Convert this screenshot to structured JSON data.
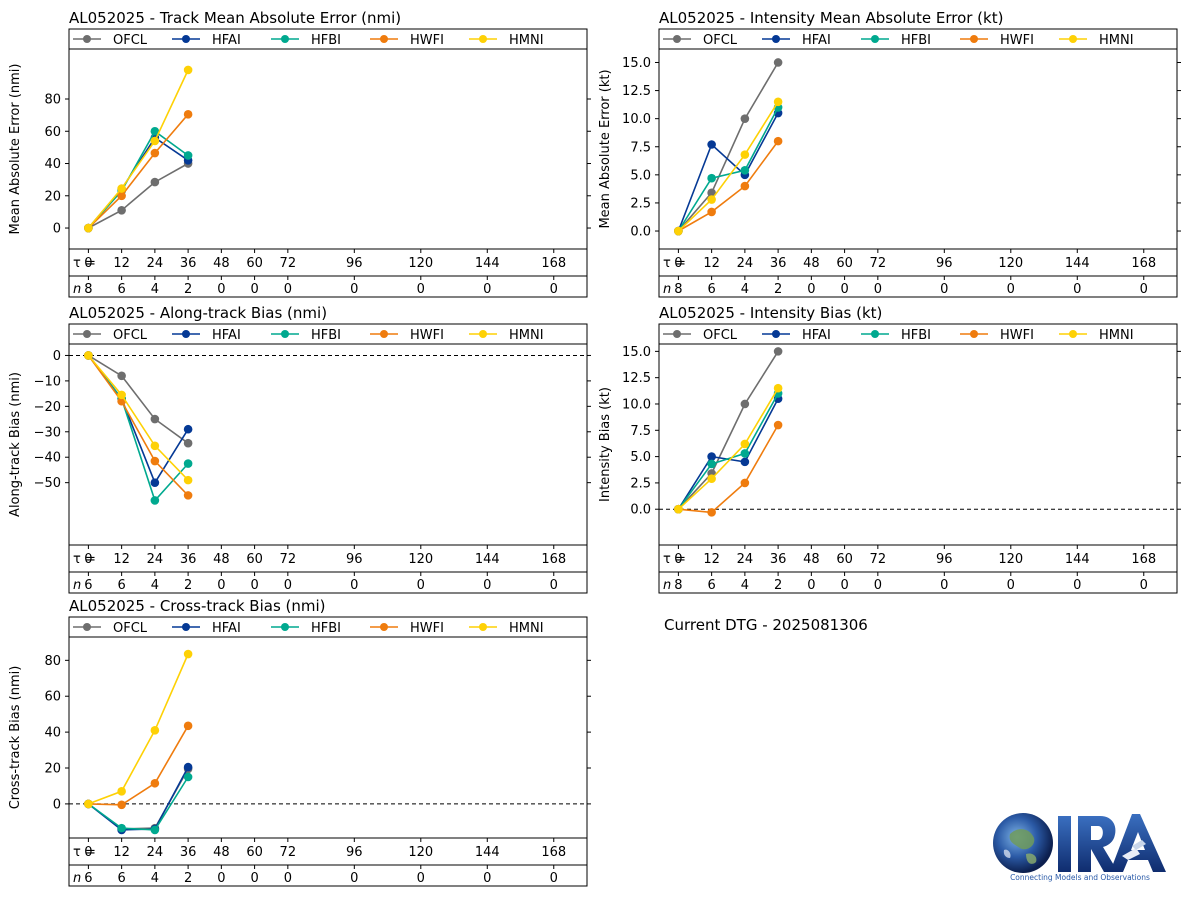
{
  "figure": {
    "current_dtg": "Current DTG - 2025081306",
    "logo_text": "CIRA",
    "logo_tagline": "Connecting Models and Observations"
  },
  "styles": {
    "series_colors": {
      "OFCL": "#6e6e6e",
      "HFAI": "#053995",
      "HFBI": "#00a98f",
      "HWFI": "#ef7c0e",
      "HMNI": "#fed105"
    }
  },
  "tau_label": "τ =",
  "n_label": "n",
  "chart_data": [
    {
      "id": "track",
      "type": "line",
      "title": "AL052025 - Track Mean Absolute Error (nmi)",
      "xlabel": "",
      "ylabel": "Mean Absolute Error (nmi)",
      "xlim": [
        -7,
        180
      ],
      "ylim": [
        -13,
        111
      ],
      "yticks": [
        0,
        20,
        40,
        60,
        80
      ],
      "zero_line": false,
      "legend": "top",
      "tau_ticks": [
        0,
        12,
        24,
        36,
        48,
        60,
        72,
        96,
        120,
        144,
        168
      ],
      "n_values": [
        8,
        6,
        4,
        2,
        0,
        0,
        0,
        0,
        0,
        0,
        0
      ],
      "series": [
        {
          "name": "OFCL",
          "x": [
            0,
            12,
            24,
            36
          ],
          "values": [
            0,
            11,
            28.5,
            40
          ]
        },
        {
          "name": "HFAI",
          "x": [
            0,
            12,
            24,
            36
          ],
          "values": [
            0,
            24,
            56,
            42
          ]
        },
        {
          "name": "HFBI",
          "x": [
            0,
            12,
            24,
            36
          ],
          "values": [
            0,
            23,
            60,
            45
          ]
        },
        {
          "name": "HWFI",
          "x": [
            0,
            12,
            24,
            36
          ],
          "values": [
            0,
            20,
            46.5,
            70.5
          ]
        },
        {
          "name": "HMNI",
          "x": [
            0,
            12,
            24,
            36
          ],
          "values": [
            0,
            24.5,
            54,
            98
          ]
        }
      ]
    },
    {
      "id": "intensity-mae",
      "type": "line",
      "title": "AL052025 - Intensity Mean Absolute Error (kt)",
      "xlabel": "",
      "ylabel": "Mean Absolute Error (kt)",
      "xlim": [
        -7,
        180
      ],
      "ylim": [
        -1.6,
        16.2
      ],
      "yticks": [
        0.0,
        2.5,
        5.0,
        7.5,
        10.0,
        12.5,
        15.0
      ],
      "ytick_decimals": 1,
      "zero_line": false,
      "legend": "top",
      "tau_ticks": [
        0,
        12,
        24,
        36,
        48,
        60,
        72,
        96,
        120,
        144,
        168
      ],
      "n_values": [
        8,
        6,
        4,
        2,
        0,
        0,
        0,
        0,
        0,
        0,
        0
      ],
      "series": [
        {
          "name": "OFCL",
          "x": [
            0,
            12,
            24,
            36
          ],
          "values": [
            0,
            3.4,
            10.0,
            15.0
          ]
        },
        {
          "name": "HFAI",
          "x": [
            0,
            12,
            24,
            36
          ],
          "values": [
            0,
            7.7,
            5.0,
            10.5
          ]
        },
        {
          "name": "HFBI",
          "x": [
            0,
            12,
            24,
            36
          ],
          "values": [
            0,
            4.7,
            5.4,
            11.0
          ]
        },
        {
          "name": "HWFI",
          "x": [
            0,
            12,
            24,
            36
          ],
          "values": [
            0,
            1.7,
            4.0,
            8.0
          ]
        },
        {
          "name": "HMNI",
          "x": [
            0,
            12,
            24,
            36
          ],
          "values": [
            0,
            2.8,
            6.8,
            11.5
          ]
        }
      ]
    },
    {
      "id": "along-track",
      "type": "line",
      "title": "AL052025 - Along-track Bias (nmi)",
      "xlabel": "",
      "ylabel": "Along-track Bias (nmi)",
      "xlim": [
        -7,
        180
      ],
      "ylim": [
        -74.5,
        4.5
      ],
      "yticks": [
        0,
        -10,
        -20,
        -30,
        -40,
        -50
      ],
      "zero_line": true,
      "legend": "top",
      "tau_ticks": [
        0,
        12,
        24,
        36,
        48,
        60,
        72,
        96,
        120,
        144,
        168
      ],
      "n_values": [
        6,
        6,
        4,
        2,
        0,
        0,
        0,
        0,
        0,
        0,
        0
      ],
      "series": [
        {
          "name": "OFCL",
          "x": [
            0,
            12,
            24,
            36
          ],
          "values": [
            0,
            -8,
            -25,
            -34.5
          ]
        },
        {
          "name": "HFAI",
          "x": [
            0,
            12,
            24,
            36
          ],
          "values": [
            0,
            -17,
            -50,
            -29
          ]
        },
        {
          "name": "HFBI",
          "x": [
            0,
            12,
            24,
            36
          ],
          "values": [
            0,
            -17,
            -57,
            -42.5
          ]
        },
        {
          "name": "HWFI",
          "x": [
            0,
            12,
            24,
            36
          ],
          "values": [
            0,
            -18,
            -41.5,
            -55
          ]
        },
        {
          "name": "HMNI",
          "x": [
            0,
            12,
            24,
            36
          ],
          "values": [
            0,
            -15.5,
            -35.5,
            -49
          ]
        }
      ]
    },
    {
      "id": "intensity-bias",
      "type": "line",
      "title": "AL052025 - Intensity Bias (kt)",
      "xlabel": "",
      "ylabel": "Intensity Bias (kt)",
      "xlim": [
        -7,
        180
      ],
      "ylim": [
        -3.4,
        15.7
      ],
      "yticks": [
        0.0,
        2.5,
        5.0,
        7.5,
        10.0,
        12.5,
        15.0
      ],
      "ytick_decimals": 1,
      "zero_line": true,
      "legend": "top",
      "tau_ticks": [
        0,
        12,
        24,
        36,
        48,
        60,
        72,
        96,
        120,
        144,
        168
      ],
      "n_values": [
        8,
        6,
        4,
        2,
        0,
        0,
        0,
        0,
        0,
        0,
        0
      ],
      "series": [
        {
          "name": "OFCL",
          "x": [
            0,
            12,
            24,
            36
          ],
          "values": [
            0,
            3.4,
            10.0,
            15.0
          ]
        },
        {
          "name": "HFAI",
          "x": [
            0,
            12,
            24,
            36
          ],
          "values": [
            0,
            5.0,
            4.5,
            10.5
          ]
        },
        {
          "name": "HFBI",
          "x": [
            0,
            12,
            24,
            36
          ],
          "values": [
            0,
            4.3,
            5.3,
            11.0
          ]
        },
        {
          "name": "HWFI",
          "x": [
            0,
            12,
            24,
            36
          ],
          "values": [
            0,
            -0.3,
            2.5,
            8.0
          ]
        },
        {
          "name": "HMNI",
          "x": [
            0,
            12,
            24,
            36
          ],
          "values": [
            0,
            2.9,
            6.2,
            11.5
          ]
        }
      ]
    },
    {
      "id": "cross-track",
      "type": "line",
      "title": "AL052025 - Cross-track Bias (nmi)",
      "xlabel": "",
      "ylabel": "Cross-track Bias (nmi)",
      "xlim": [
        -7,
        180
      ],
      "ylim": [
        -19,
        93
      ],
      "yticks": [
        0,
        20,
        40,
        60,
        80
      ],
      "zero_line": true,
      "legend": "top",
      "tau_ticks": [
        0,
        12,
        24,
        36,
        48,
        60,
        72,
        96,
        120,
        144,
        168
      ],
      "n_values": [
        6,
        6,
        4,
        2,
        0,
        0,
        0,
        0,
        0,
        0,
        0
      ],
      "series": [
        {
          "name": "OFCL",
          "x": [
            0,
            12,
            24,
            36
          ],
          "values": [
            0,
            -14,
            -13.5,
            19.5
          ]
        },
        {
          "name": "HFAI",
          "x": [
            0,
            12,
            24,
            36
          ],
          "values": [
            0,
            -14.5,
            -14,
            20.5
          ]
        },
        {
          "name": "HFBI",
          "x": [
            0,
            12,
            24,
            36
          ],
          "values": [
            0,
            -13.5,
            -14.5,
            15
          ]
        },
        {
          "name": "HWFI",
          "x": [
            0,
            12,
            24,
            36
          ],
          "values": [
            0,
            -0.5,
            11.5,
            43.5
          ]
        },
        {
          "name": "HMNI",
          "x": [
            0,
            12,
            24,
            36
          ],
          "values": [
            0,
            7,
            41,
            83.5
          ]
        }
      ]
    }
  ]
}
